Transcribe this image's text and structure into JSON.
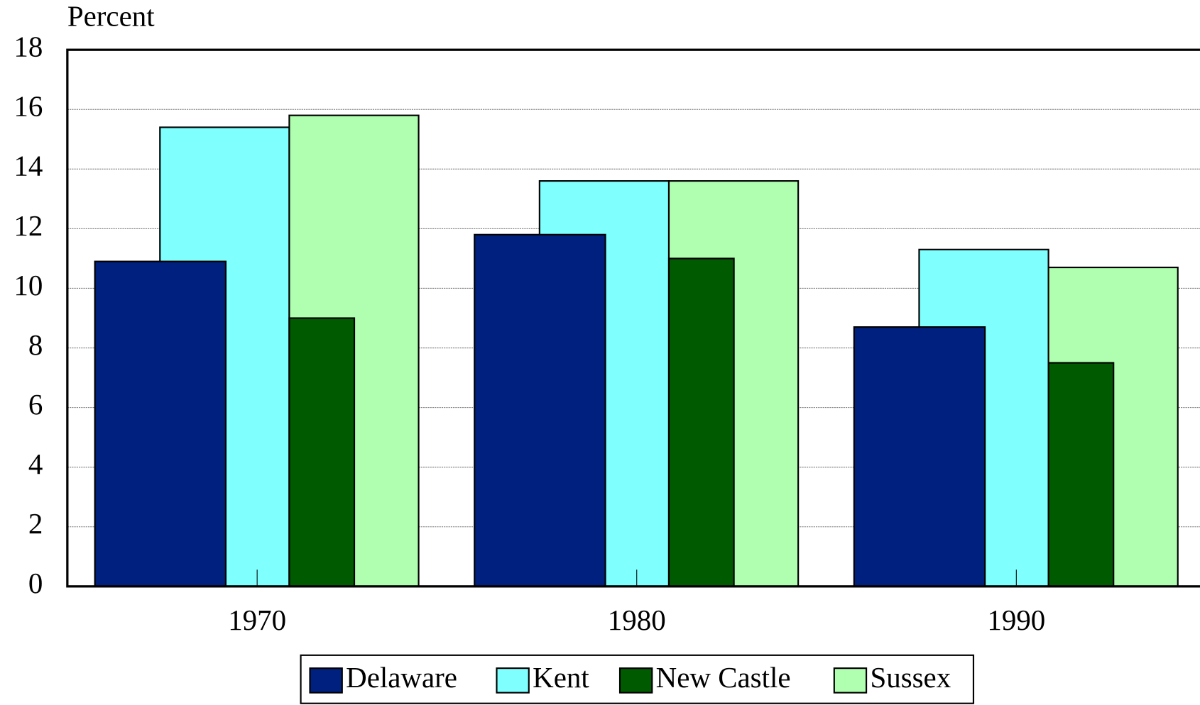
{
  "chart_data": {
    "type": "bar",
    "y_label": "Percent",
    "categories": [
      "1970",
      "1980",
      "1990"
    ],
    "series": [
      {
        "name": "Delaware",
        "color": "#00207f",
        "values": [
          10.9,
          11.8,
          8.7
        ]
      },
      {
        "name": "Kent",
        "color": "#80ffff",
        "values": [
          15.4,
          13.6,
          11.3
        ]
      },
      {
        "name": "New Castle",
        "color": "#005a00",
        "values": [
          9.0,
          11.0,
          7.5
        ]
      },
      {
        "name": "Sussex",
        "color": "#b0ffb0",
        "values": [
          15.8,
          13.6,
          10.7
        ]
      }
    ],
    "ylim": [
      0,
      18
    ],
    "yticks": [
      0,
      2,
      4,
      6,
      8,
      10,
      12,
      14,
      16,
      18
    ],
    "grid": true,
    "legend": "bottom"
  }
}
